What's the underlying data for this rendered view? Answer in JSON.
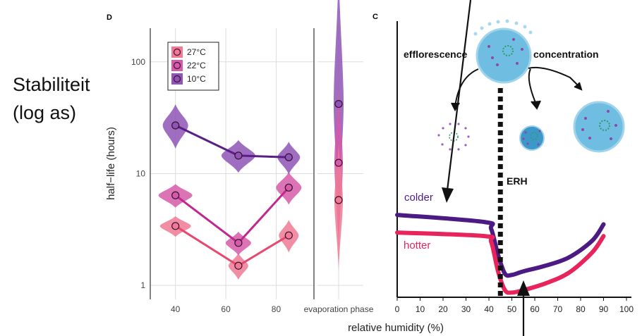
{
  "annotation": {
    "line1": "Stabiliteit",
    "line2": "(log as)"
  },
  "colors": {
    "c27": "#e8476f",
    "c22": "#c0288f",
    "c10": "#5a1f86",
    "c27_fill": "#f07a93",
    "c22_fill": "#d55aa8",
    "c10_fill": "#8e55b6",
    "hotter": "#e8245c",
    "colder": "#4b1a82",
    "droplet": "#6fbde0",
    "droplet_dark": "#3d98c9",
    "grid": "#dddddd"
  },
  "chart_data": [
    {
      "panel": "D",
      "type": "scatter",
      "title": "D",
      "ylabel": "half−life (hours)",
      "yscale": "log",
      "ylim": [
        0.75,
        200
      ],
      "xlim": [
        30,
        95
      ],
      "x_ticks": [
        40,
        60,
        80
      ],
      "y_ticks": [
        1,
        10,
        100
      ],
      "x_tick_labels": [
        "40",
        "60",
        "80"
      ],
      "y_tick_labels": [
        "1",
        "10",
        "100"
      ],
      "grid": true,
      "legend_position": "top-left",
      "series": [
        {
          "name": "27°C",
          "x": [
            40,
            65,
            85
          ],
          "y": [
            3.4,
            1.5,
            2.8
          ]
        },
        {
          "name": "22°C",
          "x": [
            40,
            65,
            85
          ],
          "y": [
            6.4,
            2.4,
            7.5
          ]
        },
        {
          "name": "10°C",
          "x": [
            40,
            65,
            85
          ],
          "y": [
            27,
            14.5,
            14
          ]
        }
      ]
    },
    {
      "panel": "D-evaporation",
      "type": "scatter",
      "xlabel": "evaporation phase",
      "series": [
        {
          "name": "27°C",
          "y": 5.8
        },
        {
          "name": "22°C",
          "y": 12.5
        },
        {
          "name": "10°C",
          "y": 42
        }
      ]
    },
    {
      "panel": "C",
      "type": "line",
      "title": "C",
      "xlabel": "relative humidity (%)",
      "xlim": [
        0,
        100
      ],
      "x_ticks": [
        0,
        10,
        20,
        30,
        40,
        50,
        60,
        70,
        80,
        90,
        100
      ],
      "x_tick_labels": [
        "0",
        "10",
        "20",
        "30",
        "40",
        "50",
        "60",
        "70",
        "80",
        "90",
        "100"
      ],
      "annotations": [
        "efflorescence",
        "concentration",
        "ERH",
        "colder",
        "hotter"
      ],
      "erh_x": 45,
      "series": [
        {
          "name": "colder",
          "x": [
            0,
            38,
            41,
            44,
            47,
            50,
            55,
            65,
            75,
            85,
            90
          ],
          "y": [
            0.7,
            0.64,
            0.58,
            0.36,
            0.2,
            0.19,
            0.22,
            0.27,
            0.34,
            0.48,
            0.62
          ]
        },
        {
          "name": "hotter",
          "x": [
            0,
            38,
            41,
            44,
            47,
            50,
            55,
            65,
            75,
            85,
            90
          ],
          "y": [
            0.55,
            0.52,
            0.47,
            0.22,
            0.06,
            0.04,
            0.06,
            0.12,
            0.21,
            0.38,
            0.52
          ]
        }
      ]
    }
  ]
}
